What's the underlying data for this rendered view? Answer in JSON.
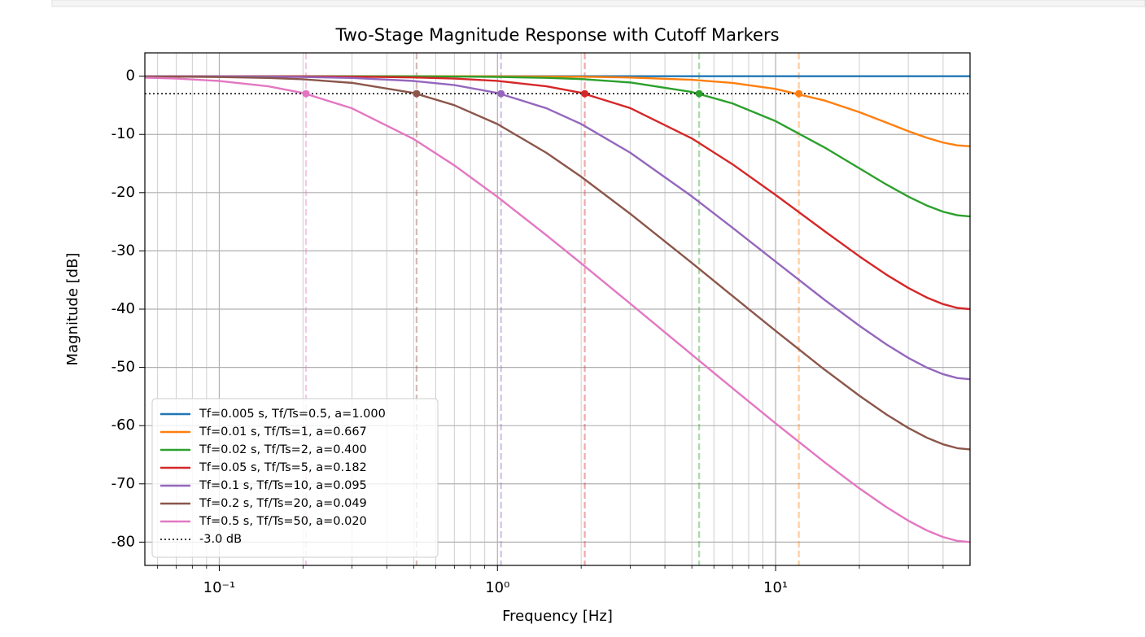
{
  "chart_data": {
    "type": "line",
    "title": "Two-Stage Magnitude Response with Cutoff Markers",
    "x_label": "Frequency [Hz]",
    "y_label": "Magnitude [dB]",
    "xscale": "log",
    "grid": true,
    "legend_loc": "lower left",
    "xlim": [
      0.054,
      50
    ],
    "ylim": [
      -84,
      4
    ],
    "xticks": [
      {
        "value": 0.1,
        "label": "10⁻¹"
      },
      {
        "value": 1,
        "label": "10⁰"
      },
      {
        "value": 10,
        "label": "10¹"
      }
    ],
    "xminor": [
      0.06,
      0.07,
      0.08,
      0.09,
      0.2,
      0.3,
      0.4,
      0.5,
      0.6,
      0.7,
      0.8,
      0.9,
      2,
      3,
      4,
      5,
      6,
      7,
      8,
      9,
      20,
      30,
      40
    ],
    "yticks": [
      -80,
      -70,
      -60,
      -50,
      -40,
      -30,
      -20,
      -10,
      0
    ],
    "x": [
      0.054,
      0.07,
      0.1,
      0.15,
      0.2,
      0.3,
      0.5,
      0.7,
      1,
      1.5,
      2,
      3,
      5,
      7,
      10,
      15,
      20,
      25,
      30,
      35,
      40,
      45,
      50
    ],
    "reference_line": {
      "value": -3,
      "label": "-3.0 dB",
      "color": "#000000"
    },
    "series": [
      {
        "name": "Tf=0.005 s, Tf/Ts=0.5, a=1.000",
        "color": "#1f77b4",
        "values": [
          0,
          0,
          0,
          0,
          0,
          0,
          0,
          0,
          0,
          0,
          0,
          0,
          0,
          0,
          0,
          0,
          0,
          0,
          0,
          0,
          0,
          0,
          0
        ]
      },
      {
        "name": "Tf=0.01 s, Tf/Ts=1, a=0.667",
        "color": "#ff7f0e",
        "cutoff": 12.12,
        "values": [
          0,
          0,
          0,
          0,
          0,
          0,
          -0.01,
          -0.01,
          -0.03,
          -0.06,
          -0.1,
          -0.23,
          -0.62,
          -1.16,
          -2.19,
          -4.18,
          -6.18,
          -7.96,
          -9.44,
          -10.58,
          -11.4,
          -11.88,
          -12.04
        ]
      },
      {
        "name": "Tf=0.02 s, Tf/Ts=2, a=0.400",
        "color": "#2ca02c",
        "cutoff": 5.31,
        "values": [
          0,
          0,
          0,
          0,
          -0.01,
          -0.01,
          -0.03,
          -0.06,
          -0.13,
          -0.28,
          -0.5,
          -1.08,
          -2.72,
          -4.68,
          -7.72,
          -12.24,
          -15.82,
          -18.59,
          -20.68,
          -22.22,
          -23.27,
          -23.88,
          -24.08
        ]
      },
      {
        "name": "Tf=0.05 s, Tf/Ts=5, a=0.182",
        "color": "#d62728",
        "cutoff": 2.06,
        "values": [
          0,
          0,
          -0.01,
          -0.02,
          -0.03,
          -0.08,
          -0.21,
          -0.41,
          -0.81,
          -1.73,
          -2.86,
          -5.47,
          -10.69,
          -15.13,
          -20.39,
          -26.61,
          -30.93,
          -34.07,
          -36.36,
          -38.02,
          -39.14,
          -39.79,
          -40
        ]
      },
      {
        "name": "Tf=0.1 s, Tf/Ts=10, a=0.095",
        "color": "#9467bd",
        "cutoff": 1.03,
        "values": [
          -0.01,
          -0.02,
          -0.03,
          -0.08,
          -0.14,
          -0.3,
          -0.82,
          -1.53,
          -2.88,
          -5.51,
          -8.21,
          -13.13,
          -20.64,
          -26.02,
          -31.84,
          -38.41,
          -42.85,
          -46.04,
          -48.37,
          -50.04,
          -51.17,
          -51.83,
          -52.04
        ]
      },
      {
        "name": "Tf=0.2 s, Tf/Ts=20, a=0.049",
        "color": "#8c564b",
        "cutoff": 0.512,
        "values": [
          -0.04,
          -0.07,
          -0.14,
          -0.3,
          -0.53,
          -1.15,
          -2.89,
          -4.98,
          -8.22,
          -13.16,
          -17.27,
          -23.62,
          -32.07,
          -37.74,
          -43.73,
          -50.39,
          -54.86,
          -58.07,
          -60.4,
          -62.08,
          -63.21,
          -63.87,
          -64.08
        ]
      },
      {
        "name": "Tf=0.5 s, Tf/Ts=50, a=0.020",
        "color": "#e377c2",
        "cutoff": 0.205,
        "values": [
          -0.25,
          -0.41,
          -0.82,
          -1.74,
          -2.89,
          -5.52,
          -10.8,
          -15.32,
          -20.72,
          -27.31,
          -32.13,
          -39.04,
          -47.81,
          -53.57,
          -59.61,
          -66.29,
          -70.77,
          -73.98,
          -76.32,
          -78,
          -79.13,
          -79.79,
          -80
        ]
      }
    ]
  }
}
